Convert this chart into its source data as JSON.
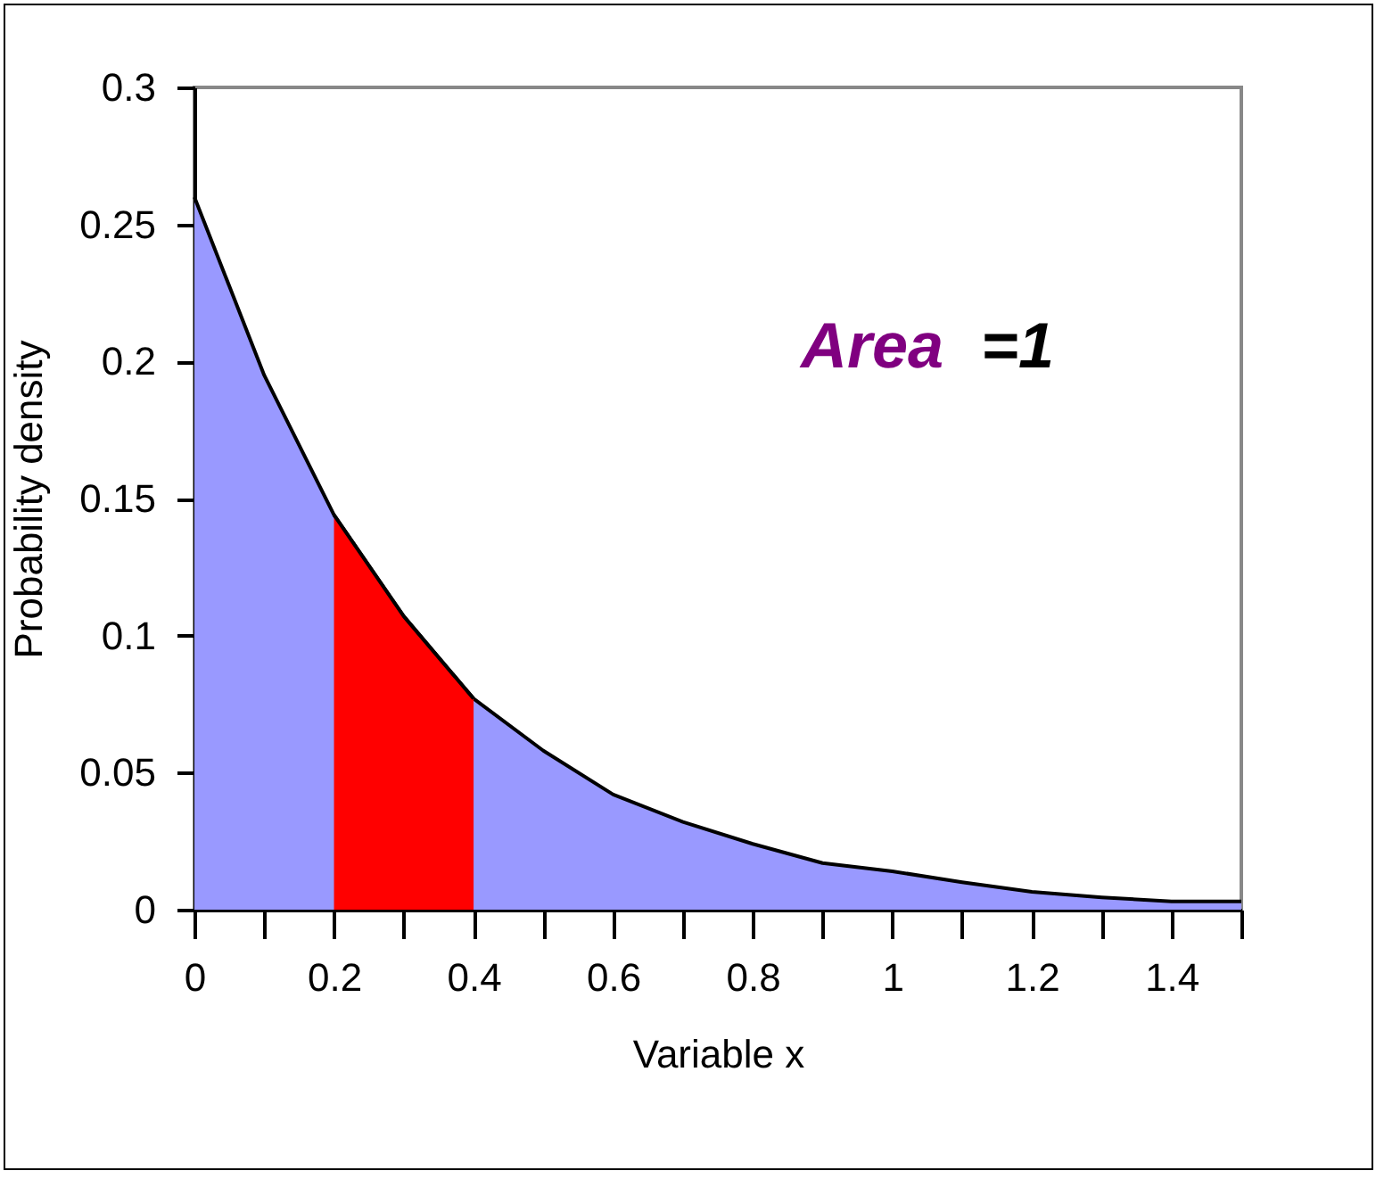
{
  "chart_data": {
    "type": "area",
    "xlabel": "Variable x",
    "ylabel": "Probability density",
    "annotations": [
      "Area =1"
    ],
    "series": [
      {
        "color": "#9999ff",
        "x": [
          0,
          0.1,
          0.2,
          0.3,
          0.4,
          0.5,
          0.6,
          0.7,
          0.8,
          0.9,
          1.0,
          1.1,
          1.2,
          1.3,
          1.4,
          1.5
        ],
        "values": [
          0.26,
          0.195,
          0.144,
          0.107,
          0.077,
          0.058,
          0.042,
          0.032,
          0.024,
          0.017,
          0.014,
          0.01,
          0.0065,
          0.0045,
          0.003,
          0.003
        ]
      },
      {
        "color": "#ff0000",
        "x": [
          0.2,
          0.3,
          0.4
        ],
        "values": [
          0.144,
          0.107,
          0.077
        ]
      }
    ],
    "xlim": [
      0,
      1.5
    ],
    "xticks": [
      0,
      {
        "value": 0.1,
        "label": null
      },
      0.2,
      {
        "value": 0.3,
        "label": null
      },
      0.4,
      {
        "value": 0.5,
        "label": null
      },
      0.6,
      {
        "value": 0.7,
        "label": null
      },
      0.8,
      {
        "value": 0.9,
        "label": null
      },
      1,
      {
        "value": 1.1,
        "label": null
      },
      1.2,
      {
        "value": 1.3,
        "label": null
      },
      1.4,
      {
        "value": 1.5,
        "label": null
      }
    ],
    "ylim": [
      0,
      0.3
    ],
    "yticks": [
      0,
      0.05,
      0.1,
      0.15,
      0.2,
      0.25,
      0.3
    ],
    "grid": false,
    "legend": false
  }
}
